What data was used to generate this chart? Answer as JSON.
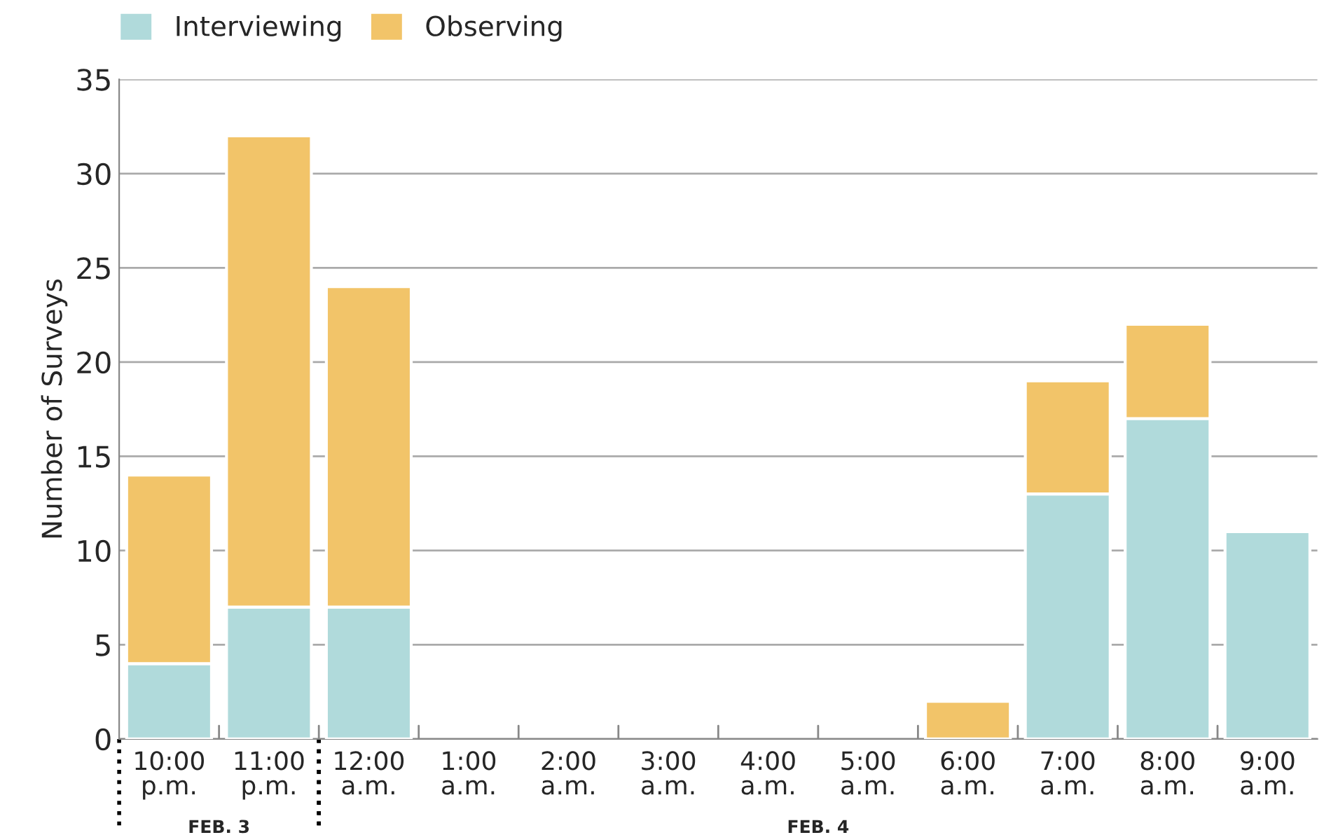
{
  "chart_data": {
    "type": "bar",
    "stacked": true,
    "ylabel": "Number of Surveys",
    "categories": [
      "10:00\np.m.",
      "11:00\np.m.",
      "12:00\na.m.",
      "1:00\na.m.",
      "2:00\na.m.",
      "3:00\na.m.",
      "4:00\na.m.",
      "5:00\na.m.",
      "6:00\na.m.",
      "7:00\na.m.",
      "8:00\na.m.",
      "9:00\na.m."
    ],
    "series": [
      {
        "name": "Interviewing",
        "color": "#b0dadb",
        "values": [
          4,
          7,
          7,
          0,
          0,
          0,
          0,
          0,
          0,
          13,
          17,
          11
        ]
      },
      {
        "name": "Observing",
        "color": "#f2c469",
        "values": [
          10,
          25,
          17,
          0,
          0,
          0,
          0,
          0,
          2,
          6,
          5,
          0
        ]
      }
    ],
    "ylim": [
      0,
      35
    ],
    "yticks": [
      0,
      5,
      10,
      15,
      20,
      25,
      30,
      35
    ],
    "grid": "y",
    "legend": "top left",
    "annotations": [
      "FEB. 3",
      "FEB. 4"
    ]
  }
}
